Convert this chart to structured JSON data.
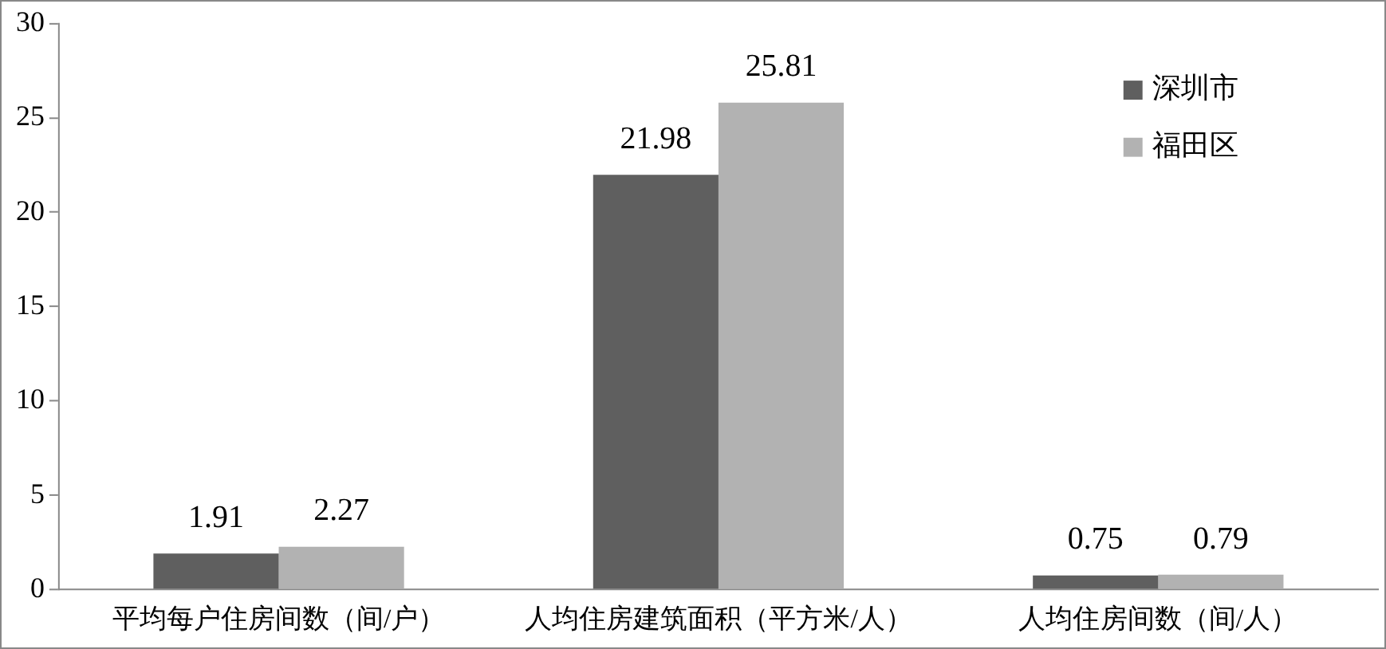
{
  "chart_data": {
    "type": "bar",
    "categories": [
      "平均每户住房间数（间/户）",
      "人均住房建筑面积（平方米/人）",
      "人均住房间数（间/人）"
    ],
    "series": [
      {
        "name": "深圳市",
        "color": "#5f5f5f",
        "values": [
          1.91,
          21.98,
          0.75
        ]
      },
      {
        "name": "福田区",
        "color": "#b2b2b2",
        "values": [
          2.27,
          25.81,
          0.79
        ]
      }
    ],
    "ylim": [
      0,
      30
    ],
    "yticks": [
      0,
      5,
      10,
      15,
      20,
      25,
      30
    ],
    "grid": false,
    "legend": "top right",
    "data_labels": true
  }
}
